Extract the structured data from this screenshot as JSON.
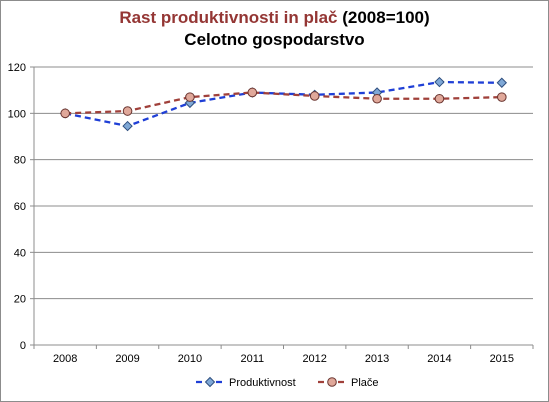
{
  "chart_data": {
    "type": "line",
    "title_part1": "Rast produktivnosti in plač",
    "title_part2": " (2008=100)",
    "subtitle": "Celotno gospodarstvo",
    "categories": [
      "2008",
      "2009",
      "2010",
      "2011",
      "2012",
      "2013",
      "2014",
      "2015"
    ],
    "ylim": [
      0,
      120
    ],
    "yticks": [
      0,
      20,
      40,
      60,
      80,
      100,
      120
    ],
    "grid": true,
    "legend_position": "bottom",
    "series": [
      {
        "name": "Produktivnost",
        "values": [
          100,
          94.5,
          104.5,
          109,
          108,
          109,
          113.5,
          113.2
        ],
        "color": "#1f3fd6",
        "marker": "diamond",
        "marker_fill": "#7fa8d6",
        "marker_stroke": "#2f4f7f"
      },
      {
        "name": "Plače",
        "values": [
          100,
          101,
          107,
          109,
          107.5,
          106.3,
          106.3,
          107
        ],
        "color": "#a0403a",
        "marker": "circle",
        "marker_fill": "#e0a89a",
        "marker_stroke": "#6a3530"
      }
    ],
    "colors": {
      "title_accent": "#943634",
      "grid": "#8c8c8c",
      "axis": "#8c8c8c"
    }
  }
}
